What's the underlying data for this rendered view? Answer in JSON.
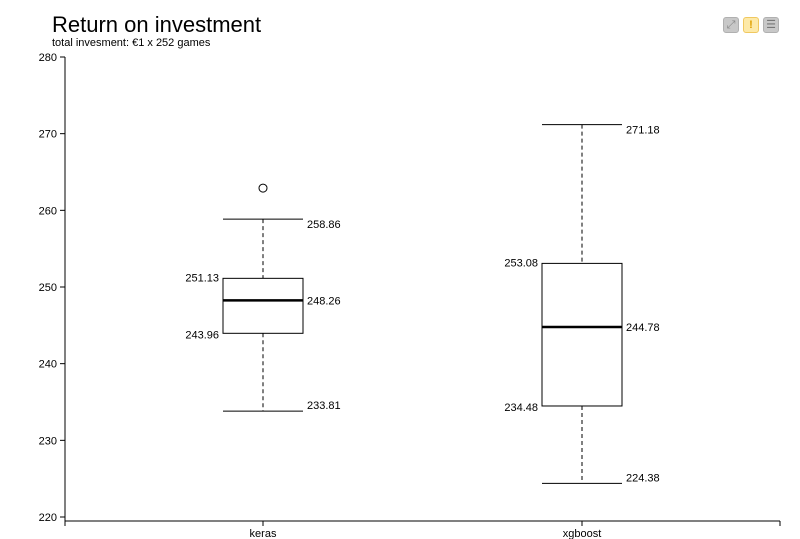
{
  "chart_data": {
    "type": "boxplot",
    "title": "Return on investment",
    "subtitle": "total invesment: €1 x 252 games",
    "ylim": [
      220,
      280
    ],
    "yticks": [
      "220",
      "230",
      "240",
      "250",
      "260",
      "270",
      "280"
    ],
    "categories": [
      "keras",
      "xgboost"
    ],
    "series": [
      {
        "name": "keras",
        "whisker_low": 233.81,
        "q1": 243.96,
        "median": 248.26,
        "q3": 251.13,
        "whisker_high": 258.86,
        "outliers": [
          262.9
        ],
        "labels": {
          "whisker_low": "233.81",
          "q1": "243.96",
          "median": "248.26",
          "q3": "251.13",
          "whisker_high": "258.86"
        }
      },
      {
        "name": "xgboost",
        "whisker_low": 224.38,
        "q1": 234.48,
        "median": 244.78,
        "q3": 253.08,
        "whisker_high": 271.18,
        "outliers": [],
        "labels": {
          "whisker_low": "224.38",
          "q1": "234.48",
          "median": "244.78",
          "q3": "253.08",
          "whisker_high": "271.18"
        }
      }
    ],
    "grid": false,
    "legend": "none"
  },
  "toolbar": {
    "fullscreen_icon": "fullscreen-icon",
    "warning_icon": "warning-icon",
    "menu_icon": "menu-icon",
    "warning_color": "#fde9a8"
  }
}
